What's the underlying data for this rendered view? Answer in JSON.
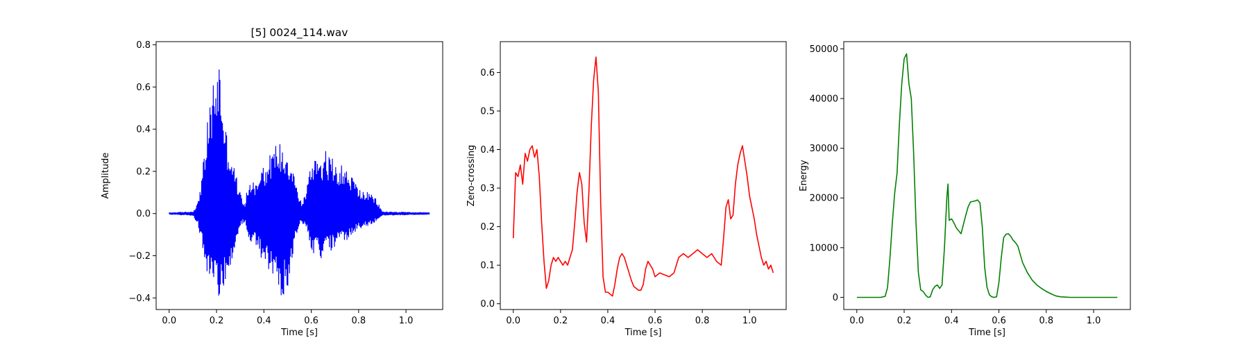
{
  "chart_data": [
    {
      "type": "line",
      "title": "[5] 0024_114.wav",
      "xlabel": "Time [s]",
      "ylabel": "Amplitude",
      "color": "#0000ff",
      "xlim": [
        -0.055,
        1.155
      ],
      "ylim": [
        -0.455,
        0.815
      ],
      "xticks": [
        0.0,
        0.2,
        0.4,
        0.6,
        0.8,
        1.0
      ],
      "xtick_labels": [
        "0.0",
        "0.2",
        "0.4",
        "0.6",
        "0.8",
        "1.0"
      ],
      "yticks": [
        -0.4,
        -0.2,
        0.0,
        0.2,
        0.4,
        0.6,
        0.8
      ],
      "ytick_labels": [
        "−0.4",
        "−0.2",
        "0.0",
        "0.2",
        "0.4",
        "0.6",
        "0.8"
      ],
      "style": "waveform-envelope",
      "envelope": {
        "t": [
          0.0,
          0.1,
          0.12,
          0.14,
          0.16,
          0.18,
          0.2,
          0.21,
          0.22,
          0.24,
          0.26,
          0.28,
          0.3,
          0.32,
          0.33,
          0.35,
          0.37,
          0.39,
          0.41,
          0.43,
          0.46,
          0.48,
          0.5,
          0.52,
          0.54,
          0.56,
          0.58,
          0.6,
          0.62,
          0.64,
          0.66,
          0.68,
          0.7,
          0.72,
          0.74,
          0.76,
          0.78,
          0.8,
          0.82,
          0.84,
          0.86,
          0.88,
          0.9,
          1.1
        ],
        "upper": [
          0.005,
          0.01,
          0.05,
          0.2,
          0.42,
          0.6,
          0.72,
          0.76,
          0.65,
          0.4,
          0.3,
          0.2,
          0.1,
          0.05,
          0.12,
          0.18,
          0.14,
          0.27,
          0.22,
          0.3,
          0.35,
          0.33,
          0.3,
          0.25,
          0.12,
          0.05,
          0.12,
          0.25,
          0.3,
          0.28,
          0.3,
          0.27,
          0.26,
          0.24,
          0.22,
          0.2,
          0.17,
          0.12,
          0.11,
          0.1,
          0.09,
          0.06,
          0.01,
          0.005
        ],
        "lower": [
          -0.005,
          -0.01,
          -0.05,
          -0.15,
          -0.28,
          -0.32,
          -0.36,
          -0.41,
          -0.39,
          -0.3,
          -0.25,
          -0.16,
          -0.06,
          -0.04,
          -0.1,
          -0.16,
          -0.15,
          -0.24,
          -0.26,
          -0.3,
          -0.34,
          -0.42,
          -0.35,
          -0.22,
          -0.09,
          -0.04,
          -0.08,
          -0.18,
          -0.2,
          -0.22,
          -0.2,
          -0.18,
          -0.16,
          -0.15,
          -0.14,
          -0.12,
          -0.1,
          -0.08,
          -0.07,
          -0.06,
          -0.05,
          -0.03,
          -0.01,
          -0.005
        ]
      }
    },
    {
      "type": "line",
      "title": "",
      "xlabel": "Time [s]",
      "ylabel": "Zero-crossing",
      "color": "#ff0000",
      "xlim": [
        -0.055,
        1.155
      ],
      "ylim": [
        -0.015,
        0.68
      ],
      "xticks": [
        0.0,
        0.2,
        0.4,
        0.6,
        0.8,
        1.0
      ],
      "xtick_labels": [
        "0.0",
        "0.2",
        "0.4",
        "0.6",
        "0.8",
        "1.0"
      ],
      "yticks": [
        0.0,
        0.1,
        0.2,
        0.3,
        0.4,
        0.5,
        0.6
      ],
      "ytick_labels": [
        "0.0",
        "0.1",
        "0.2",
        "0.3",
        "0.4",
        "0.5",
        "0.6"
      ],
      "x": [
        0.0,
        0.01,
        0.02,
        0.03,
        0.04,
        0.05,
        0.06,
        0.07,
        0.08,
        0.09,
        0.1,
        0.11,
        0.12,
        0.13,
        0.14,
        0.15,
        0.16,
        0.17,
        0.18,
        0.19,
        0.2,
        0.21,
        0.22,
        0.23,
        0.24,
        0.25,
        0.26,
        0.27,
        0.28,
        0.29,
        0.3,
        0.31,
        0.32,
        0.33,
        0.34,
        0.35,
        0.36,
        0.37,
        0.38,
        0.39,
        0.4,
        0.41,
        0.42,
        0.43,
        0.44,
        0.45,
        0.46,
        0.47,
        0.48,
        0.49,
        0.5,
        0.51,
        0.52,
        0.53,
        0.54,
        0.55,
        0.56,
        0.57,
        0.58,
        0.59,
        0.6,
        0.62,
        0.64,
        0.66,
        0.68,
        0.7,
        0.72,
        0.74,
        0.76,
        0.78,
        0.8,
        0.82,
        0.84,
        0.86,
        0.88,
        0.89,
        0.9,
        0.91,
        0.92,
        0.93,
        0.94,
        0.95,
        0.96,
        0.97,
        0.98,
        0.99,
        1.0,
        1.01,
        1.02,
        1.03,
        1.04,
        1.05,
        1.06,
        1.07,
        1.08,
        1.09,
        1.1
      ],
      "values": [
        0.17,
        0.34,
        0.33,
        0.36,
        0.31,
        0.39,
        0.37,
        0.4,
        0.41,
        0.38,
        0.4,
        0.33,
        0.21,
        0.11,
        0.04,
        0.06,
        0.1,
        0.12,
        0.11,
        0.12,
        0.11,
        0.1,
        0.11,
        0.1,
        0.12,
        0.14,
        0.21,
        0.29,
        0.34,
        0.31,
        0.21,
        0.16,
        0.29,
        0.46,
        0.58,
        0.64,
        0.55,
        0.26,
        0.07,
        0.03,
        0.03,
        0.025,
        0.02,
        0.05,
        0.09,
        0.12,
        0.13,
        0.12,
        0.1,
        0.08,
        0.06,
        0.045,
        0.04,
        0.035,
        0.035,
        0.05,
        0.09,
        0.11,
        0.1,
        0.09,
        0.07,
        0.08,
        0.075,
        0.07,
        0.08,
        0.12,
        0.13,
        0.12,
        0.13,
        0.14,
        0.13,
        0.12,
        0.13,
        0.11,
        0.1,
        0.17,
        0.25,
        0.27,
        0.22,
        0.23,
        0.31,
        0.36,
        0.39,
        0.41,
        0.37,
        0.33,
        0.28,
        0.25,
        0.22,
        0.18,
        0.15,
        0.12,
        0.1,
        0.11,
        0.09,
        0.1,
        0.08
      ]
    },
    {
      "type": "line",
      "title": "",
      "xlabel": "Time [s]",
      "ylabel": "Energy",
      "color": "#008000",
      "xlim": [
        -0.055,
        1.155
      ],
      "ylim": [
        -2450,
        51450
      ],
      "xticks": [
        0.0,
        0.2,
        0.4,
        0.6,
        0.8,
        1.0
      ],
      "xtick_labels": [
        "0.0",
        "0.2",
        "0.4",
        "0.6",
        "0.8",
        "1.0"
      ],
      "yticks": [
        0,
        10000,
        20000,
        30000,
        40000,
        50000
      ],
      "ytick_labels": [
        "0",
        "10000",
        "20000",
        "30000",
        "40000",
        "50000"
      ],
      "x": [
        0.0,
        0.1,
        0.12,
        0.13,
        0.14,
        0.15,
        0.16,
        0.17,
        0.18,
        0.19,
        0.2,
        0.21,
        0.22,
        0.23,
        0.24,
        0.25,
        0.26,
        0.27,
        0.28,
        0.29,
        0.3,
        0.31,
        0.32,
        0.33,
        0.34,
        0.35,
        0.36,
        0.37,
        0.38,
        0.385,
        0.39,
        0.4,
        0.41,
        0.42,
        0.44,
        0.46,
        0.47,
        0.48,
        0.5,
        0.51,
        0.52,
        0.53,
        0.54,
        0.55,
        0.56,
        0.57,
        0.58,
        0.59,
        0.6,
        0.61,
        0.62,
        0.63,
        0.64,
        0.65,
        0.66,
        0.67,
        0.68,
        0.7,
        0.72,
        0.74,
        0.76,
        0.78,
        0.8,
        0.82,
        0.84,
        0.86,
        0.88,
        0.9,
        1.1
      ],
      "values": [
        0,
        0,
        200,
        2000,
        8000,
        15000,
        21000,
        25000,
        35000,
        43000,
        48000,
        49000,
        43000,
        40000,
        29000,
        15000,
        5000,
        1500,
        1200,
        500,
        0,
        100,
        1500,
        2200,
        2500,
        1800,
        2500,
        10000,
        20000,
        22800,
        15500,
        15800,
        15000,
        14000,
        12800,
        16500,
        18200,
        19200,
        19400,
        19600,
        19000,
        14000,
        6000,
        2000,
        500,
        100,
        0,
        100,
        3000,
        8000,
        12000,
        12700,
        12800,
        12300,
        11500,
        11000,
        10300,
        7000,
        5000,
        3500,
        2500,
        1800,
        1200,
        700,
        300,
        100,
        50,
        0,
        0
      ]
    }
  ]
}
